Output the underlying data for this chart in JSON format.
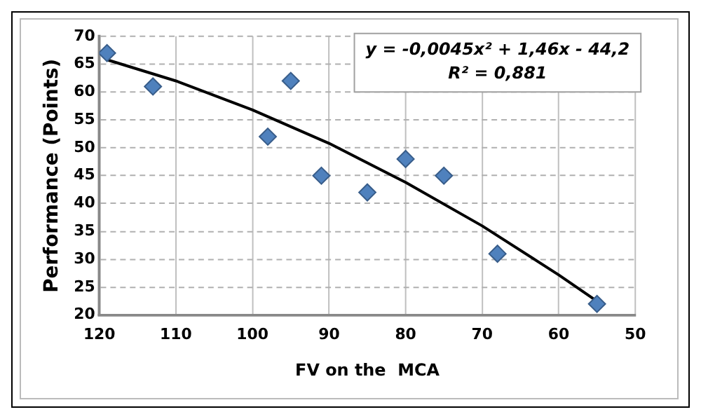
{
  "chart_data": {
    "type": "scatter",
    "xlabel": "FV on the  MCA",
    "ylabel": "Performance (Points)",
    "xlim": [
      120,
      50
    ],
    "xticks": [
      120,
      110,
      100,
      90,
      80,
      70,
      60,
      50
    ],
    "ylim": [
      20,
      70
    ],
    "yticks": [
      20,
      25,
      30,
      35,
      40,
      45,
      50,
      55,
      60,
      65,
      70
    ],
    "grid": true,
    "legend": false,
    "marker": "diamond",
    "series": [
      {
        "color": "#4f81bd",
        "x": [
          119,
          113,
          95,
          98,
          91,
          85,
          80,
          75,
          68,
          55
        ],
        "values": [
          67,
          61,
          62,
          52,
          45,
          42,
          48,
          45,
          31,
          22
        ]
      },
      {
        "type": "line",
        "color": "#000000",
        "marker": "none",
        "x": [
          119,
          110,
          100,
          90,
          80,
          70,
          60,
          55
        ],
        "values": [
          65.8,
          62.0,
          56.8,
          50.8,
          43.8,
          36.0,
          27.2,
          22.5
        ]
      }
    ],
    "annotations": [
      "y = -0,0045x² + 1,46x - 44,2",
      "R² = 0,881"
    ]
  }
}
